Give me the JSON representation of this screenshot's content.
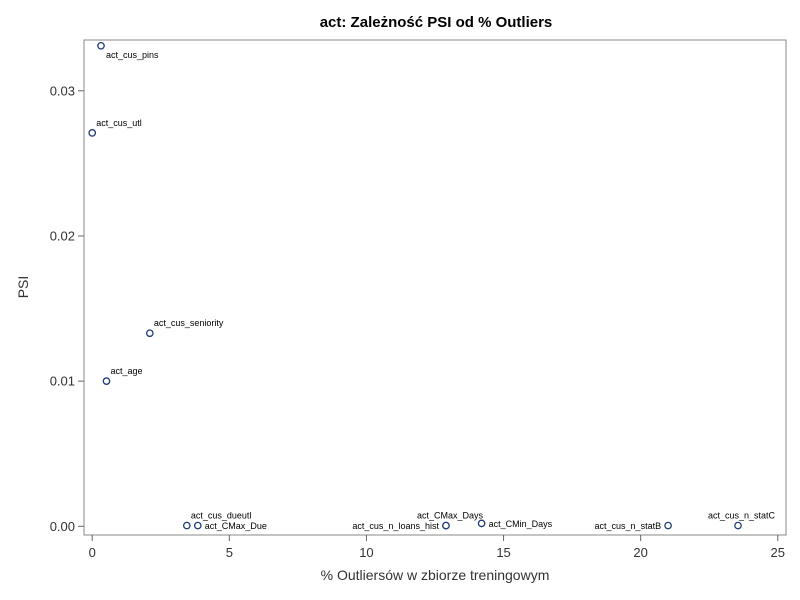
{
  "chart_data": {
    "type": "scatter",
    "title": "act: Zależność PSI od % Outliers",
    "xlabel": "% Outliersów w zbiorze treningowym",
    "ylabel": "PSI",
    "xlim": [
      -0.3,
      25.3
    ],
    "ylim": [
      -0.0006,
      0.0335
    ],
    "xticks": [
      0,
      5,
      10,
      15,
      20,
      25
    ],
    "xtick_labels": [
      "0",
      "5",
      "10",
      "15",
      "20",
      "25"
    ],
    "yticks": [
      0,
      0.01,
      0.02,
      0.03
    ],
    "ytick_labels": [
      "0.00",
      "0.01",
      "0.02",
      "0.03"
    ],
    "grid": false,
    "points": [
      {
        "x": 0.32,
        "y": 0.0331,
        "label": "act_cus_pins",
        "pos": "below-right"
      },
      {
        "x": 0.0,
        "y": 0.0271,
        "label": "act_cus_utl",
        "pos": "above-right"
      },
      {
        "x": 2.1,
        "y": 0.0133,
        "label": "act_cus_seniority",
        "pos": "above-right"
      },
      {
        "x": 0.52,
        "y": 0.01,
        "label": "act_age",
        "pos": "above-right"
      },
      {
        "x": 3.45,
        "y": 5e-05,
        "label": "act_cus_dueutl",
        "pos": "above-right"
      },
      {
        "x": 3.85,
        "y": 5e-05,
        "label": "act_CMax_Due",
        "pos": "right"
      },
      {
        "x": 12.9,
        "y": 5e-05,
        "label": "act_CMax_Days",
        "pos": "above-left"
      },
      {
        "x": 12.9,
        "y": 5e-05,
        "label": "act_cus_n_loans_hist",
        "pos": "left"
      },
      {
        "x": 14.2,
        "y": 0.0002,
        "label": "act_CMin_Days",
        "pos": "right"
      },
      {
        "x": 21.0,
        "y": 5e-05,
        "label": "act_cus_n_statB",
        "pos": "left"
      },
      {
        "x": 23.55,
        "y": 5e-05,
        "label": "act_cus_n_statC",
        "pos": "above-left"
      }
    ]
  }
}
